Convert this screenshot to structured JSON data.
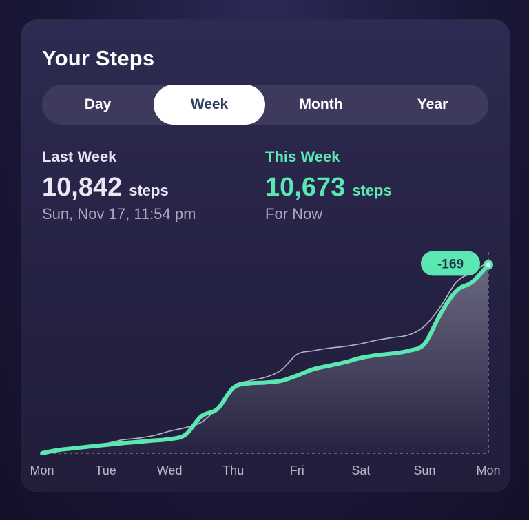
{
  "card": {
    "title": "Your Steps"
  },
  "tabs": [
    {
      "label": "Day",
      "active": false
    },
    {
      "label": "Week",
      "active": true
    },
    {
      "label": "Month",
      "active": false
    },
    {
      "label": "Year",
      "active": false
    }
  ],
  "last_week": {
    "label": "Last Week",
    "value": "10,842",
    "unit": "steps",
    "sub": "Sun, Nov 17, 11:54 pm"
  },
  "this_week": {
    "label": "This Week",
    "value": "10,673",
    "unit": "steps",
    "sub": "For Now"
  },
  "colors": {
    "accent": "#5be6b2",
    "comparison_line": "#cfcde0",
    "active_tab_text": "#2f3f63"
  },
  "chart_data": {
    "type": "line",
    "categories": [
      "Mon",
      "Tue",
      "Wed",
      "Thu",
      "Fri",
      "Sat",
      "Sun",
      "Mon"
    ],
    "series": [
      {
        "name": "Last Week",
        "x": [
          0,
          0.25,
          0.5,
          0.75,
          1,
          1.25,
          1.5,
          1.75,
          2,
          2.25,
          2.5,
          2.75,
          3,
          3.25,
          3.5,
          3.75,
          4,
          4.25,
          4.5,
          4.75,
          5,
          5.25,
          5.5,
          5.75,
          6,
          6.25,
          6.5,
          6.75,
          7
        ],
        "values": [
          0,
          250,
          350,
          450,
          550,
          750,
          850,
          1000,
          1250,
          1450,
          1750,
          2600,
          3800,
          4100,
          4300,
          4700,
          5600,
          5800,
          5950,
          6050,
          6200,
          6400,
          6550,
          6700,
          7200,
          8300,
          9700,
          10250,
          10842
        ]
      },
      {
        "name": "This Week",
        "x": [
          0,
          0.25,
          0.5,
          0.75,
          1,
          1.25,
          1.5,
          1.75,
          2,
          2.25,
          2.5,
          2.75,
          3,
          3.25,
          3.5,
          3.75,
          4,
          4.25,
          4.5,
          4.75,
          5,
          5.25,
          5.5,
          5.75,
          6,
          6.25,
          6.5,
          6.75,
          7
        ],
        "values": [
          0,
          180,
          280,
          380,
          470,
          560,
          640,
          720,
          800,
          1050,
          2100,
          2500,
          3700,
          3950,
          4000,
          4100,
          4400,
          4750,
          4950,
          5150,
          5400,
          5550,
          5650,
          5800,
          6200,
          7900,
          9200,
          9700,
          10673
        ]
      }
    ],
    "ylim": [
      0,
      11000
    ],
    "annotation": {
      "text": "-169",
      "at_x": 7
    },
    "grid": false,
    "legend": "none"
  }
}
